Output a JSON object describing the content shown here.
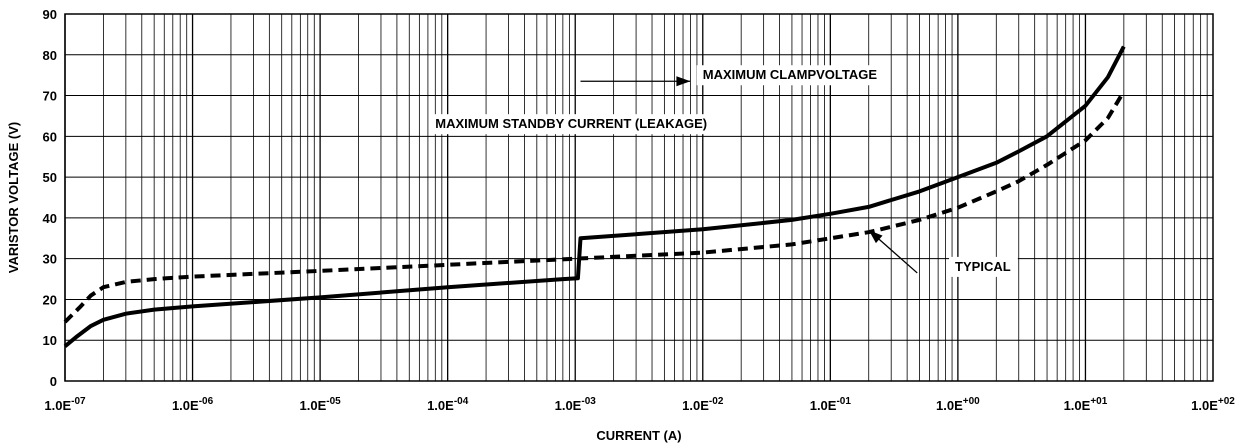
{
  "chart_data": {
    "type": "line",
    "xlabel": "CURRENT (A)",
    "ylabel": "VARISTOR VOLTAGE (V)",
    "x_scale": "log",
    "xlim": [
      1e-07,
      100
    ],
    "ylim": [
      0,
      90
    ],
    "grid": true,
    "y_ticks": [
      0,
      10,
      20,
      30,
      40,
      50,
      60,
      70,
      80,
      90
    ],
    "x_ticks": [
      {
        "value": 1e-07,
        "mantissa": "1.0E",
        "exp": "-07"
      },
      {
        "value": 1e-06,
        "mantissa": "1.0E",
        "exp": "-06"
      },
      {
        "value": 1e-05,
        "mantissa": "1.0E",
        "exp": "-05"
      },
      {
        "value": 0.0001,
        "mantissa": "1.0E",
        "exp": "-04"
      },
      {
        "value": 0.001,
        "mantissa": "1.0E",
        "exp": "-03"
      },
      {
        "value": 0.01,
        "mantissa": "1.0E",
        "exp": "-02"
      },
      {
        "value": 0.1,
        "mantissa": "1.0E",
        "exp": "-01"
      },
      {
        "value": 1,
        "mantissa": "1.0E",
        "exp": "+00"
      },
      {
        "value": 10,
        "mantissa": "1.0E",
        "exp": "+01"
      },
      {
        "value": 100,
        "mantissa": "1.0E",
        "exp": "+02"
      }
    ],
    "series": [
      {
        "style": "solid",
        "points": [
          [
            1e-07,
            8.5
          ],
          [
            1.25e-07,
            11
          ],
          [
            1.6e-07,
            13.5
          ],
          [
            2e-07,
            15
          ],
          [
            3e-07,
            16.5
          ],
          [
            5e-07,
            17.5
          ],
          [
            1e-06,
            18.3
          ],
          [
            1e-05,
            20.5
          ],
          [
            0.0001,
            23
          ],
          [
            0.0008,
            25
          ],
          [
            0.00105,
            25.2
          ],
          [
            0.0011,
            35
          ],
          [
            0.01,
            37.2
          ],
          [
            0.05,
            39.5
          ],
          [
            0.1,
            41
          ],
          [
            0.2,
            42.7
          ],
          [
            0.5,
            46.5
          ],
          [
            1,
            50
          ],
          [
            2,
            53.5
          ],
          [
            3,
            56.3
          ],
          [
            5,
            60
          ],
          [
            10,
            67.5
          ],
          [
            15,
            74.5
          ],
          [
            20,
            82
          ]
        ]
      },
      {
        "style": "dashed",
        "points": [
          [
            1e-07,
            14.5
          ],
          [
            1.3e-07,
            18
          ],
          [
            1.6e-07,
            21
          ],
          [
            2e-07,
            23
          ],
          [
            3e-07,
            24.3
          ],
          [
            5e-07,
            25
          ],
          [
            1e-06,
            25.6
          ],
          [
            1e-05,
            27
          ],
          [
            0.0001,
            28.5
          ],
          [
            0.001,
            30
          ],
          [
            0.01,
            31.5
          ],
          [
            0.05,
            33.5
          ],
          [
            0.1,
            35
          ],
          [
            0.2,
            36.5
          ],
          [
            0.5,
            39.5
          ],
          [
            1,
            42.5
          ],
          [
            2,
            46.5
          ],
          [
            3,
            49
          ],
          [
            5,
            53
          ],
          [
            10,
            59
          ],
          [
            15,
            64.5
          ],
          [
            20,
            71
          ]
        ]
      }
    ],
    "annotations": [
      {
        "text": "MAXIMUM CLAMPVOLTAGE",
        "label_x": 0.01,
        "label_y": 74,
        "arrow_from": [
          0.0011,
          73.5
        ],
        "arrow_to": [
          0.008,
          73.5
        ]
      },
      {
        "text": "MAXIMUM STANDBY CURRENT (LEAKAGE)",
        "label_x": 8e-05,
        "label_y": 62,
        "arrow_from": [
          0.001,
          62
        ],
        "arrow_to": [
          0.00022,
          62
        ]
      },
      {
        "text": "TYPICAL",
        "label_x": 0.95,
        "label_y": 27,
        "arrow_from": [
          0.48,
          26.5
        ],
        "arrow_to": [
          0.2,
          37
        ]
      }
    ]
  }
}
